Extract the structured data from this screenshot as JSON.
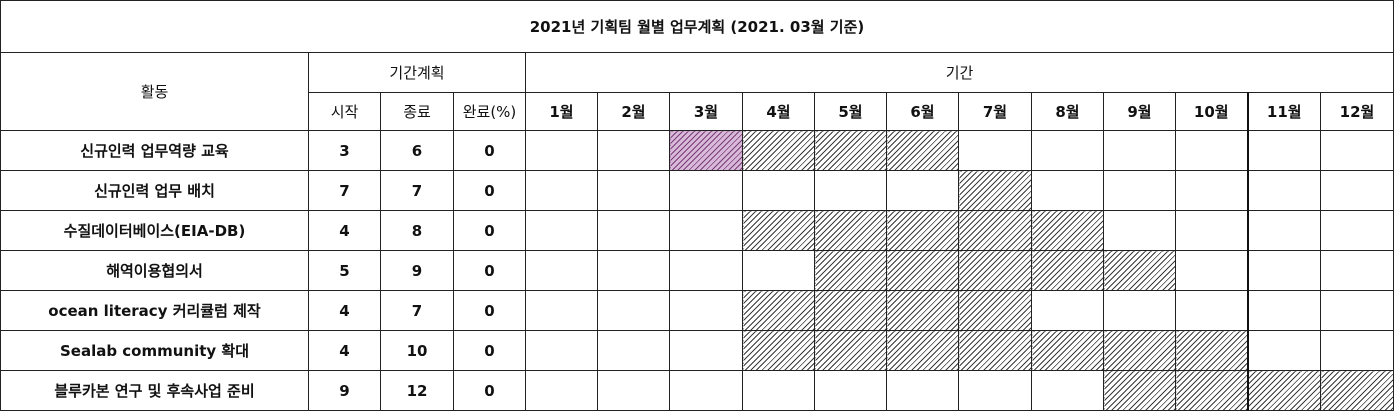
{
  "title": "2021년 기획팀 월별 업무계획 (2021. 03월 기준)",
  "headers": {
    "activity": "활동",
    "plan_group": "기간계획",
    "period_group": "기간",
    "start": "시작",
    "end": "종료",
    "complete": "완료(%)"
  },
  "months": [
    "1월",
    "2월",
    "3월",
    "4월",
    "5월",
    "6월",
    "7월",
    "8월",
    "9월",
    "10월",
    "11월",
    "12월"
  ],
  "current_month": 3,
  "rows": [
    {
      "activity": "신규인력 업무역량 교육",
      "start": "3",
      "end": "6",
      "complete": "0"
    },
    {
      "activity": "신규인력 업무 배치",
      "start": "7",
      "end": "7",
      "complete": "0"
    },
    {
      "activity": "수질데이터베이스(EIA-DB)",
      "start": "4",
      "end": "8",
      "complete": "0"
    },
    {
      "activity": "해역이용협의서",
      "start": "5",
      "end": "9",
      "complete": "0"
    },
    {
      "activity": "ocean literacy 커리큘럼 제작",
      "start": "4",
      "end": "7",
      "complete": "0"
    },
    {
      "activity": "Sealab community  확대",
      "start": "4",
      "end": "10",
      "complete": "0"
    },
    {
      "activity": "블루카본 연구 및 후속사업 준비",
      "start": "9",
      "end": "12",
      "complete": "0"
    }
  ]
}
